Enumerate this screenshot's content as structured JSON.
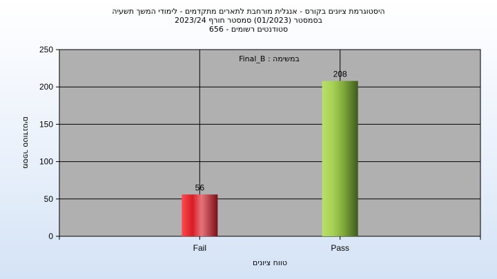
{
  "title_lines": [
    "היסטוגרמת ציונים בקורס - אנגלית מורחבת לתארים מתקדמים - לימודי המשך תשעיה",
    "בסמסטר  (01/2023)  סמסטר חורף 2023/24",
    "סטודנטים רשומים - 656"
  ],
  "chart_data": {
    "type": "bar",
    "categories": [
      "Fail",
      "Pass"
    ],
    "values": [
      56,
      208
    ],
    "data_labels": [
      "56",
      "208"
    ],
    "series": [
      {
        "values": [
          56,
          208
        ],
        "colors": [
          "#e5333a",
          "#9ccc3c"
        ]
      }
    ],
    "xlabel": "טווח ציונים",
    "ylabel": "מספר סטודנטים",
    "ylim": [
      0,
      250
    ],
    "yticks": [
      0,
      50,
      100,
      150,
      200,
      250
    ],
    "annotation": "במשימה : Final_B",
    "grid": true,
    "plot_background": "#b0b0b0"
  }
}
